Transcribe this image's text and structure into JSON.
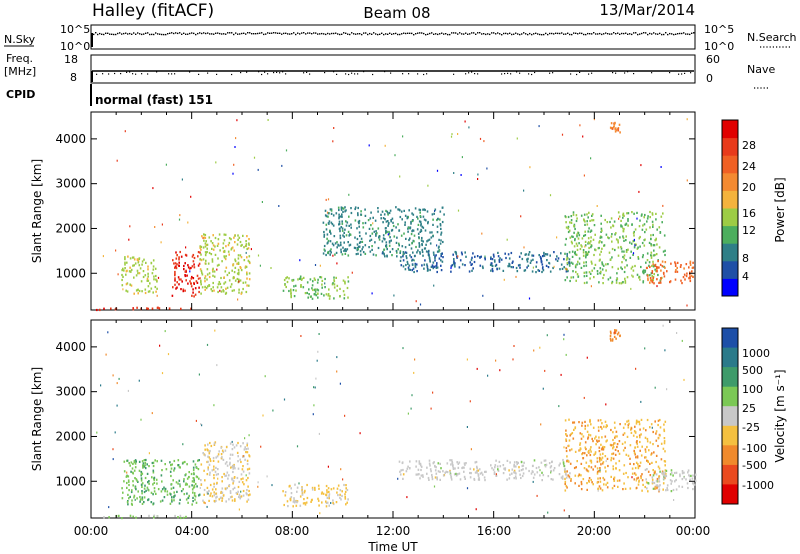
{
  "header": {
    "station": "Halley (fitACF)",
    "beam": "Beam 08",
    "date": "13/Mar/2014"
  },
  "strips": {
    "nsky_label": "N.Sky",
    "nsearch_label": "N.Search",
    "nsky_ticks": [
      "10^5",
      "10^0"
    ],
    "freq_label_line1": "Freq.",
    "freq_label_line2": "[MHz]",
    "freq_ticks": [
      "18",
      "8"
    ],
    "nave_label": "Nave",
    "nave_ticks": [
      "60",
      "0"
    ],
    "cpid_label": "CPID",
    "cpid_value": "normal (fast) 151"
  },
  "axes": {
    "xlabel": "Time UT",
    "ylabel": "Slant Range [km]",
    "xticks": [
      "00:00",
      "04:00",
      "08:00",
      "12:00",
      "16:00",
      "20:00",
      "00:00"
    ],
    "yticks": [
      "1000",
      "2000",
      "3000",
      "4000"
    ]
  },
  "power_colorbar": {
    "title": "Power [dB]",
    "ticks": [
      "4",
      "8",
      "12",
      "16",
      "20",
      "24",
      "28"
    ],
    "colors": [
      "#0000ff",
      "#1f4fa6",
      "#2f7f87",
      "#4cae5e",
      "#9dcc45",
      "#f4b33d",
      "#f48a31",
      "#f06024",
      "#e83a1b",
      "#e00000"
    ]
  },
  "velocity_colorbar": {
    "title": "Velocity [m s⁻¹]",
    "ticks": [
      "1000",
      "500",
      "100",
      "25",
      "-25",
      "-100",
      "-500",
      "-1000"
    ],
    "colors": [
      "#1d4fa8",
      "#2a7a8a",
      "#3e9b6a",
      "#7bc855",
      "#c8c8c8",
      "#f4c040",
      "#f08a2c",
      "#ea4a1f",
      "#e00000"
    ]
  },
  "chart_data": [
    {
      "type": "heatmap",
      "title": "Halley (fitACF) Beam 08 13/Mar/2014 - Power",
      "xlabel": "Time UT",
      "ylabel": "Slant Range [km]",
      "xlim": [
        0,
        24
      ],
      "ylim": [
        180,
        4600
      ],
      "colorbar": "Power [dB]",
      "clim": [
        0,
        30
      ],
      "regions": [
        {
          "t": [
            0.0,
            4.0
          ],
          "r": [
            200,
            260
          ],
          "value": 26
        },
        {
          "t": [
            1.2,
            2.6
          ],
          "r": [
            550,
            1400
          ],
          "value": 14
        },
        {
          "t": [
            3.2,
            4.3
          ],
          "r": [
            500,
            1500
          ],
          "value": 27
        },
        {
          "t": [
            4.3,
            6.3
          ],
          "r": [
            550,
            1900
          ],
          "value": 14
        },
        {
          "t": [
            7.6,
            10.2
          ],
          "r": [
            450,
            950
          ],
          "value": 12
        },
        {
          "t": [
            9.2,
            14.0
          ],
          "r": [
            1400,
            2500
          ],
          "value": 8
        },
        {
          "t": [
            12.2,
            19.0
          ],
          "r": [
            1050,
            1500
          ],
          "value": 6
        },
        {
          "t": [
            18.8,
            22.8
          ],
          "r": [
            800,
            2400
          ],
          "value": 12
        },
        {
          "t": [
            22.0,
            24.0
          ],
          "r": [
            800,
            1300
          ],
          "value": 22
        },
        {
          "t": [
            20.6,
            21.0
          ],
          "r": [
            4150,
            4400
          ],
          "value": 20
        }
      ]
    },
    {
      "type": "heatmap",
      "title": "Halley (fitACF) Beam 08 13/Mar/2014 - Velocity",
      "xlabel": "Time UT",
      "ylabel": "Slant Range [km]",
      "xlim": [
        0,
        24
      ],
      "ylim": [
        180,
        4600
      ],
      "colorbar": "Velocity [m s-1]",
      "clim": [
        -1000,
        1000
      ],
      "regions": [
        {
          "t": [
            0.0,
            4.0
          ],
          "r": [
            200,
            260
          ],
          "value": 100
        },
        {
          "t": [
            1.2,
            4.3
          ],
          "r": [
            500,
            1500
          ],
          "value": 300
        },
        {
          "t": [
            4.3,
            6.3
          ],
          "r": [
            550,
            1900
          ],
          "value": -100
        },
        {
          "t": [
            7.6,
            10.2
          ],
          "r": [
            450,
            950
          ],
          "value": -150
        },
        {
          "t": [
            12.2,
            19.0
          ],
          "r": [
            1050,
            1500
          ],
          "value": 0
        },
        {
          "t": [
            18.8,
            22.8
          ],
          "r": [
            800,
            2400
          ],
          "value": -300
        },
        {
          "t": [
            22.0,
            24.0
          ],
          "r": [
            800,
            1300
          ],
          "value": 50
        },
        {
          "t": [
            20.6,
            21.0
          ],
          "r": [
            4150,
            4400
          ],
          "value": -500
        }
      ]
    }
  ]
}
